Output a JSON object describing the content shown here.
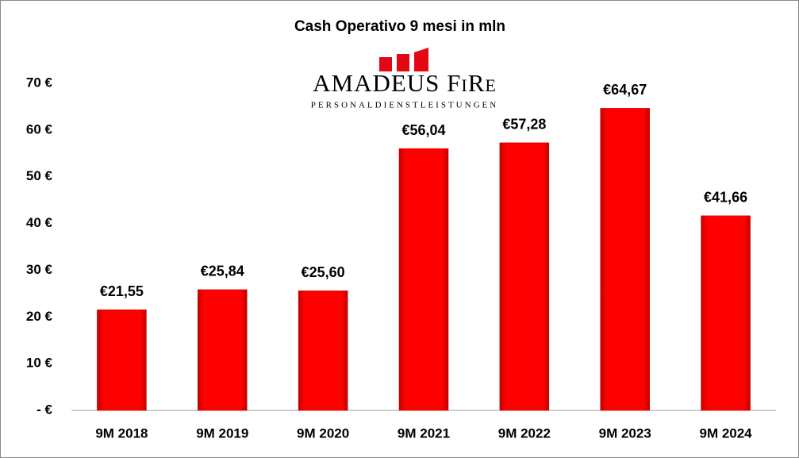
{
  "chart_data": {
    "type": "bar",
    "title": "Cash Operativo 9 mesi in mln",
    "logo": {
      "name": "AMADEUS FiRe",
      "tagline": "PERSONALDIENSTLEISTUNGEN"
    },
    "categories": [
      "9M 2018",
      "9M 2019",
      "9M 2020",
      "9M 2021",
      "9M 2022",
      "9M 2023",
      "9M 2024"
    ],
    "values": [
      21.55,
      25.84,
      25.6,
      56.04,
      57.28,
      64.67,
      41.66
    ],
    "value_labels": [
      "€21,55",
      "€25,84",
      "€25,60",
      "€56,04",
      "€57,28",
      "€64,67",
      "€41,66"
    ],
    "color": "#ff0000",
    "ylim": [
      0,
      70
    ],
    "yticks": [
      {
        "value": 0,
        "label": "- €"
      },
      {
        "value": 10,
        "label": "10 €"
      },
      {
        "value": 20,
        "label": "20 €"
      },
      {
        "value": 30,
        "label": "30 €"
      },
      {
        "value": 40,
        "label": "40 €"
      },
      {
        "value": 50,
        "label": "50 €"
      },
      {
        "value": 60,
        "label": "60 €"
      },
      {
        "value": 70,
        "label": "70 €"
      }
    ],
    "grid": false
  }
}
